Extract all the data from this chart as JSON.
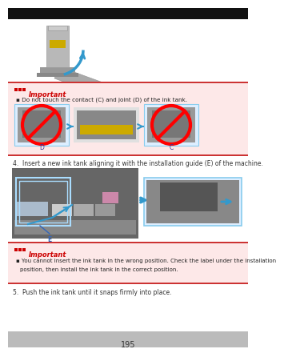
{
  "bg_color": "#ffffff",
  "important_bg": "#fde8e8",
  "important_border_top": "#cc3333",
  "important_border_box": "#e8a0a0",
  "important_text_color": "#cc0000",
  "step4_text": "4.  Insert a new ink tank aligning it with the installation guide (E) of the machine.",
  "step5_text": "5.  Push the ink tank until it snaps firmly into place.",
  "important1_bullet": "Do not touch the contact (C) and joint (D) of the ink tank.",
  "important2_line1": "You cannot insert the ink tank in the wrong position. Check the label under the installation",
  "important2_line2": "position, then install the ink tank in the correct position.",
  "label_c": "C",
  "label_d": "D",
  "label_e": "E",
  "blue_arrow": "#3399cc",
  "inset_border": "#88ccee",
  "page_number": "195",
  "black_header": "#111111",
  "gray_footer": "#bbbbbb",
  "tank_gray": "#aaaaaa",
  "tank_dark": "#888888",
  "ink_yellow": "#ccaa00",
  "machine_gray": "#888888",
  "machine_dark": "#555555"
}
